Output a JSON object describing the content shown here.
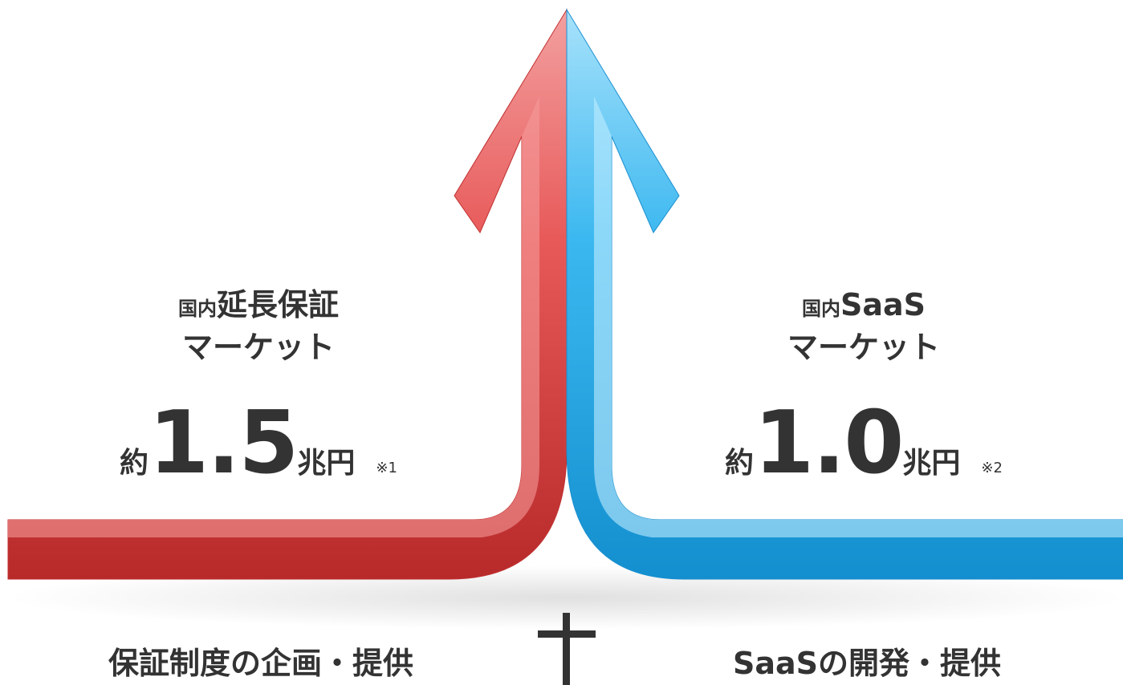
{
  "left": {
    "prefix": "国内",
    "market": "延長保証",
    "line2": "マーケット",
    "approx": "約",
    "amount": "1.5",
    "unit": "兆円",
    "note": "※1",
    "caption": "保証制度の企画・提供"
  },
  "right": {
    "prefix": "国内",
    "market": "SaaS",
    "line2": "マーケット",
    "approx": "約",
    "amount": "1.0",
    "unit": "兆円",
    "note": "※2",
    "caption": "SaaSの開発・提供"
  }
}
